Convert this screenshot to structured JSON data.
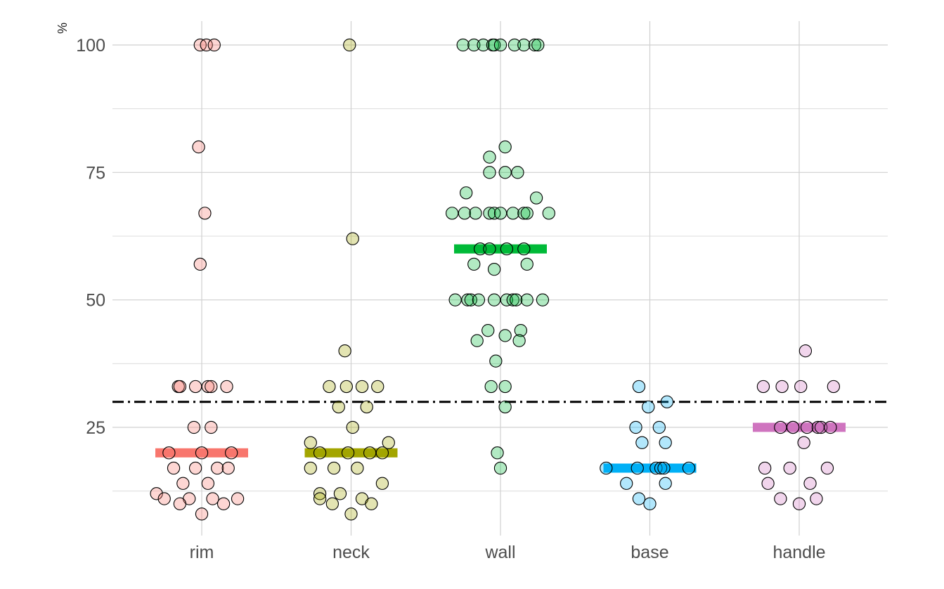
{
  "chart_data": {
    "type": "scatter",
    "subtype": "dotplot-by-category-with-median-bar",
    "ylabel": "%",
    "xlabel": "",
    "y_ticks": [
      25,
      50,
      75,
      100
    ],
    "ylim": [
      3.5,
      104
    ],
    "grid": true,
    "legend": "none",
    "reference_line": {
      "y": 30,
      "style": "dash-dot",
      "color": "#000000"
    },
    "categories": [
      "rim",
      "neck",
      "wall",
      "base",
      "handle"
    ],
    "series": [
      {
        "category": "rim",
        "color": "#F8766D",
        "median": 20,
        "points": [
          [
            -0.01,
            100
          ],
          [
            0.03,
            100
          ],
          [
            0.08,
            100
          ],
          [
            -0.02,
            80
          ],
          [
            0.02,
            67
          ],
          [
            -0.01,
            57
          ],
          [
            -0.15,
            33
          ],
          [
            -0.14,
            33
          ],
          [
            -0.04,
            33
          ],
          [
            0.04,
            33
          ],
          [
            0.06,
            33
          ],
          [
            0.16,
            33
          ],
          [
            -0.05,
            25
          ],
          [
            0.06,
            25
          ],
          [
            -0.21,
            20
          ],
          [
            0.0,
            20
          ],
          [
            0.19,
            20
          ],
          [
            -0.18,
            17
          ],
          [
            -0.04,
            17
          ],
          [
            0.1,
            17
          ],
          [
            0.17,
            17
          ],
          [
            -0.12,
            14
          ],
          [
            0.04,
            14
          ],
          [
            -0.29,
            12
          ],
          [
            -0.24,
            11
          ],
          [
            -0.08,
            11
          ],
          [
            0.07,
            11
          ],
          [
            0.23,
            11
          ],
          [
            -0.14,
            10
          ],
          [
            0.14,
            10
          ],
          [
            0.0,
            8
          ]
        ]
      },
      {
        "category": "neck",
        "color": "#A3A500",
        "median": 20,
        "points": [
          [
            -0.01,
            100
          ],
          [
            0.01,
            62
          ],
          [
            -0.04,
            40
          ],
          [
            -0.14,
            33
          ],
          [
            -0.03,
            33
          ],
          [
            0.07,
            33
          ],
          [
            0.17,
            33
          ],
          [
            -0.08,
            29
          ],
          [
            0.1,
            29
          ],
          [
            0.01,
            25
          ],
          [
            -0.26,
            22
          ],
          [
            0.24,
            22
          ],
          [
            -0.2,
            20
          ],
          [
            -0.02,
            20
          ],
          [
            0.12,
            20
          ],
          [
            0.2,
            20
          ],
          [
            -0.26,
            17
          ],
          [
            -0.11,
            17
          ],
          [
            0.04,
            17
          ],
          [
            0.2,
            14
          ],
          [
            -0.2,
            12
          ],
          [
            -0.07,
            12
          ],
          [
            -0.2,
            11
          ],
          [
            0.07,
            11
          ],
          [
            -0.12,
            10
          ],
          [
            0.13,
            10
          ],
          [
            0.0,
            8
          ]
        ]
      },
      {
        "category": "wall",
        "color": "#00BA38",
        "median": 60,
        "points": [
          [
            -0.24,
            100
          ],
          [
            -0.17,
            100
          ],
          [
            -0.11,
            100
          ],
          [
            -0.05,
            100
          ],
          [
            -0.04,
            100
          ],
          [
            0.0,
            100
          ],
          [
            0.09,
            100
          ],
          [
            0.15,
            100
          ],
          [
            0.22,
            100
          ],
          [
            0.24,
            100
          ],
          [
            0.03,
            80
          ],
          [
            -0.07,
            78
          ],
          [
            -0.07,
            75
          ],
          [
            0.03,
            75
          ],
          [
            0.11,
            75
          ],
          [
            0.23,
            70
          ],
          [
            -0.22,
            71
          ],
          [
            -0.31,
            67
          ],
          [
            -0.23,
            67
          ],
          [
            -0.16,
            67
          ],
          [
            -0.07,
            67
          ],
          [
            -0.04,
            67
          ],
          [
            0.0,
            67
          ],
          [
            0.08,
            67
          ],
          [
            0.15,
            67
          ],
          [
            0.17,
            67
          ],
          [
            0.31,
            67
          ],
          [
            -0.13,
            60
          ],
          [
            -0.07,
            60
          ],
          [
            0.04,
            60
          ],
          [
            0.15,
            60
          ],
          [
            -0.17,
            57
          ],
          [
            -0.04,
            56
          ],
          [
            0.17,
            57
          ],
          [
            -0.29,
            50
          ],
          [
            -0.21,
            50
          ],
          [
            -0.19,
            50
          ],
          [
            -0.14,
            50
          ],
          [
            -0.04,
            50
          ],
          [
            0.04,
            50
          ],
          [
            0.08,
            50
          ],
          [
            0.1,
            50
          ],
          [
            0.17,
            50
          ],
          [
            0.27,
            50
          ],
          [
            -0.08,
            44
          ],
          [
            0.13,
            44
          ],
          [
            0.03,
            43
          ],
          [
            -0.15,
            42
          ],
          [
            0.12,
            42
          ],
          [
            -0.03,
            38
          ],
          [
            -0.06,
            33
          ],
          [
            0.03,
            33
          ],
          [
            0.03,
            29
          ],
          [
            -0.02,
            20
          ],
          [
            0.0,
            17
          ]
        ]
      },
      {
        "category": "base",
        "color": "#00B0F6",
        "median": 17,
        "points": [
          [
            -0.07,
            33
          ],
          [
            -0.01,
            29
          ],
          [
            0.11,
            30
          ],
          [
            -0.09,
            25
          ],
          [
            0.06,
            25
          ],
          [
            -0.05,
            22
          ],
          [
            0.1,
            22
          ],
          [
            -0.28,
            17
          ],
          [
            -0.08,
            17
          ],
          [
            0.04,
            17
          ],
          [
            0.07,
            17
          ],
          [
            0.09,
            17
          ],
          [
            0.25,
            17
          ],
          [
            -0.15,
            14
          ],
          [
            0.1,
            14
          ],
          [
            -0.07,
            11
          ],
          [
            0.0,
            10
          ]
        ]
      },
      {
        "category": "handle",
        "color": "#CF74BF",
        "median": 25,
        "points": [
          [
            0.04,
            40
          ],
          [
            -0.23,
            33
          ],
          [
            -0.11,
            33
          ],
          [
            0.01,
            33
          ],
          [
            0.22,
            33
          ],
          [
            -0.12,
            25
          ],
          [
            -0.04,
            25
          ],
          [
            0.12,
            25
          ],
          [
            -0.04,
            25
          ],
          [
            0.05,
            25
          ],
          [
            0.14,
            25
          ],
          [
            0.2,
            25
          ],
          [
            0.03,
            22
          ],
          [
            -0.22,
            17
          ],
          [
            -0.06,
            17
          ],
          [
            0.18,
            17
          ],
          [
            -0.2,
            14
          ],
          [
            0.07,
            14
          ],
          [
            -0.12,
            11
          ],
          [
            0.11,
            11
          ],
          [
            0.0,
            10
          ]
        ]
      }
    ]
  }
}
